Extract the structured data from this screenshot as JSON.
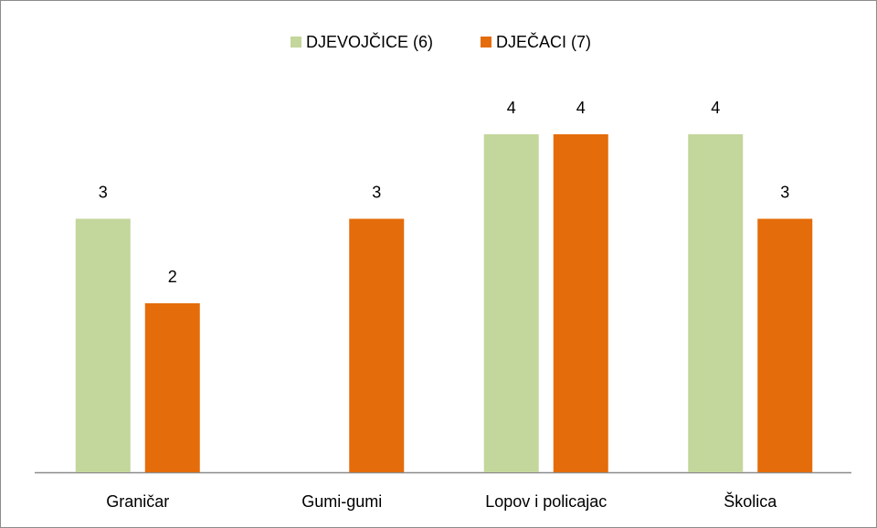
{
  "chart_data": {
    "type": "bar",
    "categories": [
      "Graničar",
      "Gumi-gumi",
      "Lopov i policajac",
      "Školica"
    ],
    "series": [
      {
        "name": "DJEVOJČICE (6)",
        "color": "#c3d69b",
        "values": [
          3,
          null,
          4,
          4
        ]
      },
      {
        "name": "DJEČACI (7)",
        "color": "#e46c0a",
        "values": [
          2,
          3,
          4,
          3
        ]
      }
    ],
    "ylim": [
      0,
      5
    ],
    "legend": "top"
  }
}
